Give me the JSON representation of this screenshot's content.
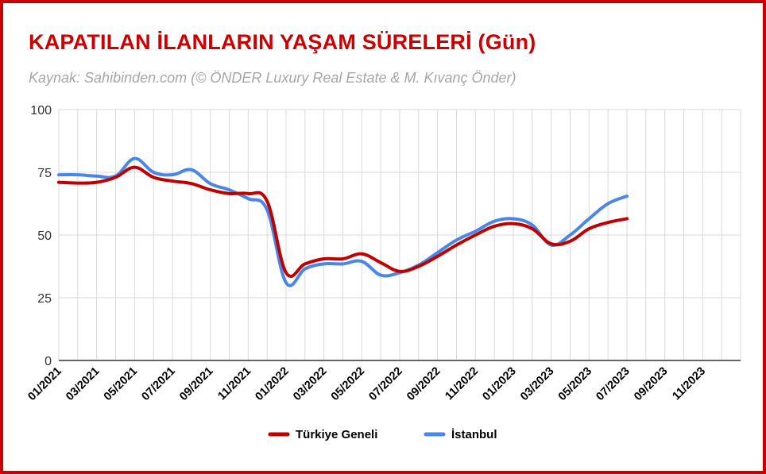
{
  "title": "KAPATILAN İLANLARIN YAŞAM SÜRELERİ (Gün)",
  "subtitle": "Kaynak: Sahibinden.com (© ÖNDER Luxury Real Estate & M. Kıvanç Önder)",
  "colors": {
    "frame": "#cc0000",
    "title": "#cc0000",
    "subtitle": "#a6a6a6",
    "grid": "#d9d9d9",
    "axis": "#333333"
  },
  "chart_data": {
    "type": "line",
    "ylim": [
      0,
      100
    ],
    "yticks": [
      0,
      25,
      50,
      75,
      100
    ],
    "grid": true,
    "legend_position": "bottom",
    "x_labels": [
      "01/2021",
      "03/2021",
      "05/2021",
      "07/2021",
      "09/2021",
      "11/2021",
      "01/2022",
      "03/2022",
      "05/2022",
      "07/2022",
      "09/2022",
      "11/2022",
      "01/2023",
      "03/2023",
      "05/2023",
      "07/2023",
      "09/2023",
      "11/2023"
    ],
    "x": [
      "01/2021",
      "02/2021",
      "03/2021",
      "04/2021",
      "05/2021",
      "06/2021",
      "07/2021",
      "08/2021",
      "09/2021",
      "10/2021",
      "11/2021",
      "12/2021",
      "01/2022",
      "02/2022",
      "03/2022",
      "04/2022",
      "05/2022",
      "06/2022",
      "07/2022",
      "08/2022",
      "09/2022",
      "10/2022",
      "11/2022",
      "12/2022",
      "01/2023",
      "02/2023",
      "03/2023",
      "04/2023",
      "05/2023",
      "06/2023",
      "07/2023"
    ],
    "series": [
      {
        "name": "Türkiye Geneli",
        "color": "#c00000",
        "values": [
          71,
          70.7,
          71,
          73,
          77,
          73,
          71.5,
          70.5,
          68,
          66.5,
          66.5,
          63.5,
          35,
          38.5,
          40.5,
          40.5,
          42.5,
          39,
          35.5,
          37.5,
          41.5,
          46,
          50,
          53.5,
          54.5,
          52.5,
          46.5,
          47.5,
          52.5,
          55,
          56.5
        ]
      },
      {
        "name": "İstanbul",
        "color": "#4a86e8",
        "values": [
          74,
          74,
          73.5,
          73.5,
          80.5,
          75,
          74,
          76,
          70.5,
          68,
          64.5,
          60,
          31,
          36.5,
          38.5,
          38.5,
          39.5,
          34,
          35,
          38,
          43,
          48,
          51.5,
          55.5,
          56.5,
          54,
          46,
          50,
          56.5,
          62.5,
          65.5
        ]
      }
    ]
  }
}
